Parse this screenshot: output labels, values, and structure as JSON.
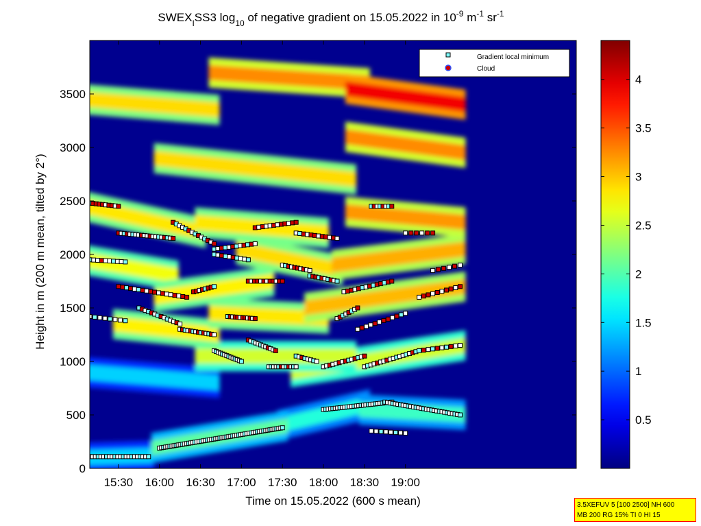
{
  "title": {
    "p1": "SWEX",
    "sub1": "I",
    "p2": "SS3 log",
    "sub2": "10",
    "p3": " of negative gradient on 15.05.2022 in 10",
    "sup1": "-9",
    "p4": " m",
    "sup2": "-1",
    "p5": " sr",
    "sup3": "-1"
  },
  "info_box": {
    "line1": "3.5XEFUV 5 [100 2500] NH 600",
    "line2": "MB 200 RG 15% TI 0 HI 15"
  },
  "colors": {
    "background_low": "#00008f",
    "square_marker_fill": "#7fffff",
    "cloud_marker_fill": "#cc0000",
    "magenta_marker": "#ff40ff",
    "info_box_bg": "#ffff00",
    "info_box_border": "#ff0000"
  },
  "chart_data": {
    "type": "heatmap",
    "xlabel": "Time on 15.05.2022 (600 s mean)",
    "ylabel": "Height in m (200 m mean, tilted by 2°)",
    "xlim_minutes_since_midnight": [
      909,
      1265
    ],
    "ylim": [
      0,
      4000
    ],
    "x_ticks": [
      {
        "t": 930,
        "label": "15:30"
      },
      {
        "t": 960,
        "label": "16:00"
      },
      {
        "t": 990,
        "label": "16:30"
      },
      {
        "t": 1020,
        "label": "17:00"
      },
      {
        "t": 1050,
        "label": "17:30"
      },
      {
        "t": 1080,
        "label": "18:00"
      },
      {
        "t": 1110,
        "label": "18:30"
      },
      {
        "t": 1140,
        "label": "19:00"
      }
    ],
    "y_ticks": [
      {
        "v": 0,
        "label": "0"
      },
      {
        "v": 500,
        "label": "500"
      },
      {
        "v": 1000,
        "label": "1000"
      },
      {
        "v": 1500,
        "label": "1500"
      },
      {
        "v": 2000,
        "label": "2000"
      },
      {
        "v": 2500,
        "label": "2500"
      },
      {
        "v": 3000,
        "label": "3000"
      },
      {
        "v": 3500,
        "label": "3500"
      }
    ],
    "colorbar": {
      "range": [
        0,
        4.4
      ],
      "ticks": [
        {
          "v": 0.5,
          "label": "0.5"
        },
        {
          "v": 1,
          "label": "1"
        },
        {
          "v": 1.5,
          "label": "1.5"
        },
        {
          "v": 2,
          "label": "2"
        },
        {
          "v": 2.5,
          "label": "2.5"
        },
        {
          "v": 3,
          "label": "3"
        },
        {
          "v": 3.5,
          "label": "3.5"
        },
        {
          "v": 4,
          "label": "4"
        }
      ]
    },
    "legend": {
      "placement": "top-right",
      "entries": [
        {
          "label": "Gradient local minimum",
          "marker": "square"
        },
        {
          "label": "Cloud",
          "marker": "circle"
        }
      ]
    },
    "layers_value_units": [
      {
        "t": [
          909,
          952
        ],
        "h": [
          100,
          120
        ],
        "v": [
          1.4,
          1.2
        ]
      },
      {
        "t": [
          958,
          1050
        ],
        "h": [
          190,
          400
        ],
        "v": [
          1.8,
          2.0
        ]
      },
      {
        "t": [
          1050,
          1110
        ],
        "h": [
          400,
          600
        ],
        "v": [
          1.5,
          1.8
        ]
      },
      {
        "t": [
          1110,
          1180
        ],
        "h": [
          550,
          500
        ],
        "v": [
          1.6,
          1.9
        ]
      },
      {
        "t": [
          909,
          1000
        ],
        "h": [
          900,
          800
        ],
        "v": [
          1.2,
          1.4
        ]
      },
      {
        "t": [
          990,
          1100
        ],
        "h": [
          1050,
          1050
        ],
        "v": [
          2.3,
          2.5
        ]
      },
      {
        "t": [
          1060,
          1180
        ],
        "h": [
          900,
          1150
        ],
        "v": [
          2.2,
          2.6
        ]
      },
      {
        "t": [
          930,
          1000
        ],
        "h": [
          1350,
          1250
        ],
        "v": [
          2.5,
          2.8
        ]
      },
      {
        "t": [
          1000,
          1080
        ],
        "h": [
          1450,
          1400
        ],
        "v": [
          2.6,
          2.8
        ]
      },
      {
        "t": [
          1070,
          1180
        ],
        "h": [
          1500,
          1700
        ],
        "v": [
          2.8,
          3.0
        ]
      },
      {
        "t": [
          909,
          970
        ],
        "h": [
          1950,
          1800
        ],
        "v": [
          2.4,
          2.7
        ]
      },
      {
        "t": [
          960,
          1040
        ],
        "h": [
          1600,
          1750
        ],
        "v": [
          2.5,
          2.8
        ]
      },
      {
        "t": [
          1020,
          1090
        ],
        "h": [
          2050,
          1850
        ],
        "v": [
          2.6,
          2.9
        ]
      },
      {
        "t": [
          1090,
          1180
        ],
        "h": [
          1900,
          2050
        ],
        "v": [
          2.8,
          3.1
        ]
      },
      {
        "t": [
          909,
          990
        ],
        "h": [
          2450,
          2200
        ],
        "v": [
          2.6,
          2.8
        ]
      },
      {
        "t": [
          990,
          1080
        ],
        "h": [
          2300,
          2200
        ],
        "v": [
          2.6,
          2.8
        ]
      },
      {
        "t": [
          1100,
          1180
        ],
        "h": [
          2400,
          2300
        ],
        "v": [
          3.0,
          3.1
        ]
      },
      {
        "t": [
          960,
          1100
        ],
        "h": [
          2900,
          2700
        ],
        "v": [
          2.6,
          2.9
        ]
      },
      {
        "t": [
          1100,
          1180
        ],
        "h": [
          3100,
          2950
        ],
        "v": [
          3.0,
          3.2
        ]
      },
      {
        "t": [
          909,
          1000
        ],
        "h": [
          3450,
          3350
        ],
        "v": [
          2.6,
          2.9
        ]
      },
      {
        "t": [
          1000,
          1110
        ],
        "h": [
          3700,
          3600
        ],
        "v": [
          2.9,
          3.3
        ]
      },
      {
        "t": [
          1100,
          1180
        ],
        "h": [
          3550,
          3400
        ],
        "v": [
          3.6,
          3.9
        ]
      }
    ],
    "marker_tracks": [
      {
        "t": [
          909,
          952
        ],
        "h": [
          110,
          110
        ],
        "n": 22,
        "cloud": 0
      },
      {
        "t": [
          960,
          1050
        ],
        "h": [
          190,
          380
        ],
        "n": 60,
        "cloud": 0
      },
      {
        "t": [
          1080,
          1130
        ],
        "h": [
          550,
          620
        ],
        "n": 30,
        "cloud": 0
      },
      {
        "t": [
          1125,
          1180
        ],
        "h": [
          620,
          500
        ],
        "n": 30,
        "cloud": 0
      },
      {
        "t": [
          1115,
          1140
        ],
        "h": [
          350,
          330
        ],
        "n": 8,
        "cloud": 0
      },
      {
        "t": [
          909,
          935
        ],
        "h": [
          1420,
          1380
        ],
        "n": 8,
        "cloud": 0
      },
      {
        "t": [
          945,
          975
        ],
        "h": [
          1500,
          1350
        ],
        "n": 14,
        "cloud": 0.3
      },
      {
        "t": [
          975,
          1000
        ],
        "h": [
          1300,
          1250
        ],
        "n": 14,
        "cloud": 0.4
      },
      {
        "t": [
          1000,
          1020
        ],
        "h": [
          1100,
          1000
        ],
        "n": 14,
        "cloud": 0.1
      },
      {
        "t": [
          1010,
          1030
        ],
        "h": [
          1420,
          1400
        ],
        "n": 12,
        "cloud": 0.6
      },
      {
        "t": [
          1025,
          1045
        ],
        "h": [
          1200,
          1100
        ],
        "n": 12,
        "cloud": 0.2
      },
      {
        "t": [
          1040,
          1060
        ],
        "h": [
          950,
          950
        ],
        "n": 12,
        "cloud": 0.2
      },
      {
        "t": [
          1060,
          1075
        ],
        "h": [
          1050,
          1000
        ],
        "n": 8,
        "cloud": 0.1
      },
      {
        "t": [
          1080,
          1110
        ],
        "h": [
          950,
          1050
        ],
        "n": 14,
        "cloud": 0.3
      },
      {
        "t": [
          1110,
          1150
        ],
        "h": [
          950,
          1100
        ],
        "n": 18,
        "cloud": 0.2
      },
      {
        "t": [
          1150,
          1180
        ],
        "h": [
          1100,
          1150
        ],
        "n": 10,
        "cloud": 0.3
      },
      {
        "t": [
          1090,
          1105
        ],
        "h": [
          1400,
          1500
        ],
        "n": 8,
        "cloud": 0.5
      },
      {
        "t": [
          1105,
          1140
        ],
        "h": [
          1300,
          1450
        ],
        "n": 12,
        "cloud": 0.5
      },
      {
        "t": [
          909,
          935
        ],
        "h": [
          1950,
          1930
        ],
        "n": 10,
        "cloud": 0.2
      },
      {
        "t": [
          930,
          980
        ],
        "h": [
          1700,
          1600
        ],
        "n": 18,
        "cloud": 0.5
      },
      {
        "t": [
          985,
          1000
        ],
        "h": [
          1650,
          1700
        ],
        "n": 8,
        "cloud": 0.6
      },
      {
        "t": [
          1000,
          1025
        ],
        "h": [
          2000,
          1950
        ],
        "n": 10,
        "cloud": 0.2
      },
      {
        "t": [
          1025,
          1050
        ],
        "h": [
          1750,
          1750
        ],
        "n": 12,
        "cloud": 0.6
      },
      {
        "t": [
          1050,
          1070
        ],
        "h": [
          1900,
          1850
        ],
        "n": 10,
        "cloud": 0.4
      },
      {
        "t": [
          1070,
          1090
        ],
        "h": [
          1800,
          1750
        ],
        "n": 10,
        "cloud": 0.4
      },
      {
        "t": [
          1095,
          1130
        ],
        "h": [
          1650,
          1750
        ],
        "n": 14,
        "cloud": 0.6
      },
      {
        "t": [
          1150,
          1180
        ],
        "h": [
          1600,
          1700
        ],
        "n": 10,
        "cloud": 0.7
      },
      {
        "t": [
          909,
          930
        ],
        "h": [
          2480,
          2450
        ],
        "n": 10,
        "cloud": 0.8
      },
      {
        "t": [
          930,
          970
        ],
        "h": [
          2200,
          2150
        ],
        "n": 20,
        "cloud": 0.2
      },
      {
        "t": [
          970,
          1000
        ],
        "h": [
          2300,
          2100
        ],
        "n": 14,
        "cloud": 0.3
      },
      {
        "t": [
          1000,
          1030
        ],
        "h": [
          2050,
          2100
        ],
        "n": 12,
        "cloud": 0.3
      },
      {
        "t": [
          1030,
          1060
        ],
        "h": [
          2250,
          2300
        ],
        "n": 12,
        "cloud": 0.5
      },
      {
        "t": [
          1060,
          1090
        ],
        "h": [
          2200,
          2150
        ],
        "n": 12,
        "cloud": 0.5
      },
      {
        "t": [
          1115,
          1130
        ],
        "h": [
          2450,
          2450
        ],
        "n": 8,
        "cloud": 0.3
      },
      {
        "t": [
          1140,
          1160
        ],
        "h": [
          2200,
          2200
        ],
        "n": 6,
        "cloud": 0.6
      },
      {
        "t": [
          1160,
          1180
        ],
        "h": [
          1850,
          1900
        ],
        "n": 6,
        "cloud": 0.7
      },
      {
        "t": [
          1180,
          1180
        ],
        "h": [
          1150,
          1150
        ],
        "n": 3,
        "cloud": 0
      },
      {
        "t": [
          1180,
          1180
        ],
        "h": [
          500,
          500
        ],
        "n": 3,
        "cloud": 0
      }
    ]
  }
}
